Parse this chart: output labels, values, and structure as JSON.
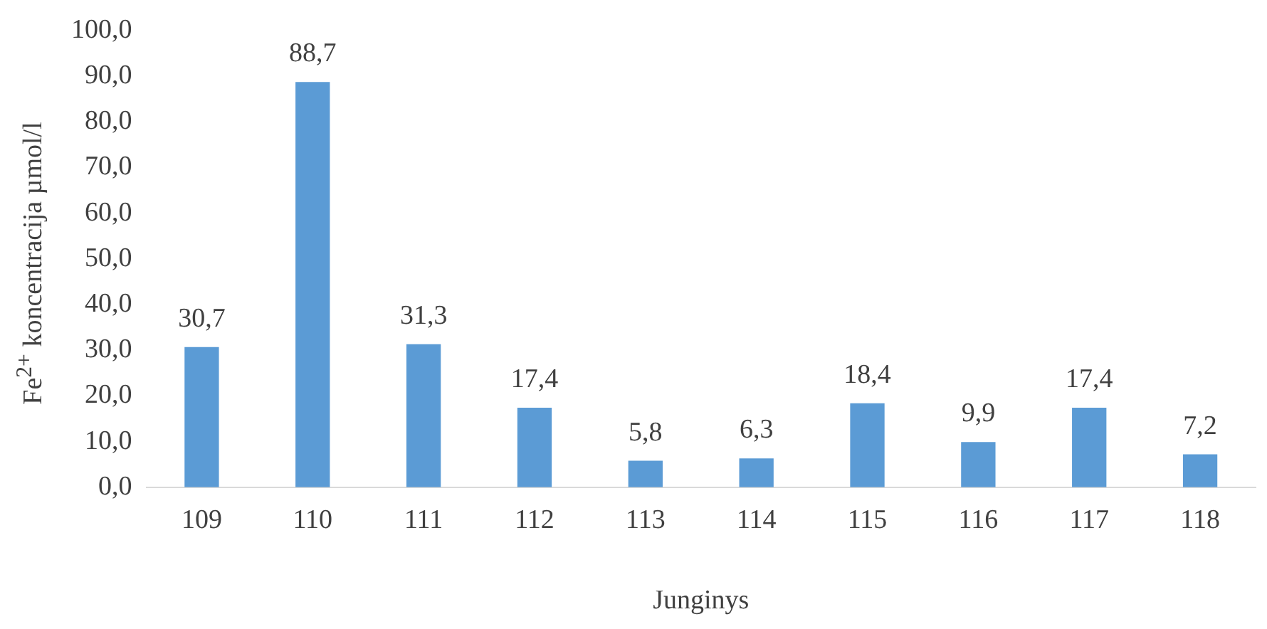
{
  "chart_data": {
    "type": "bar",
    "xlabel": "Junginys",
    "ylabel": "Fe$^{2+}$ koncentracija µmol/l",
    "categories": [
      "109",
      "110",
      "111",
      "112",
      "113",
      "114",
      "115",
      "116",
      "117",
      "118"
    ],
    "values": [
      30.7,
      88.7,
      31.3,
      17.4,
      5.8,
      6.3,
      18.4,
      9.9,
      17.4,
      7.2
    ],
    "value_labels": [
      "30,7",
      "88,7",
      "31,3",
      "17,4",
      "5,8",
      "6,3",
      "18,4",
      "9,9",
      "17,4",
      "7,2"
    ],
    "color": "#5b9bd5",
    "ylim": [
      0,
      100
    ],
    "yticks": [
      {
        "value": 0,
        "label": "0,0"
      },
      {
        "value": 10,
        "label": "10,0"
      },
      {
        "value": 20,
        "label": "20,0"
      },
      {
        "value": 30,
        "label": "30,0"
      },
      {
        "value": 40,
        "label": "40,0"
      },
      {
        "value": 50,
        "label": "50,0"
      },
      {
        "value": 60,
        "label": "60,0"
      },
      {
        "value": 70,
        "label": "70,0"
      },
      {
        "value": 80,
        "label": "80,0"
      },
      {
        "value": 90,
        "label": "90,0"
      },
      {
        "value": 100,
        "label": "100,0"
      }
    ],
    "grid": false,
    "legend": false
  }
}
